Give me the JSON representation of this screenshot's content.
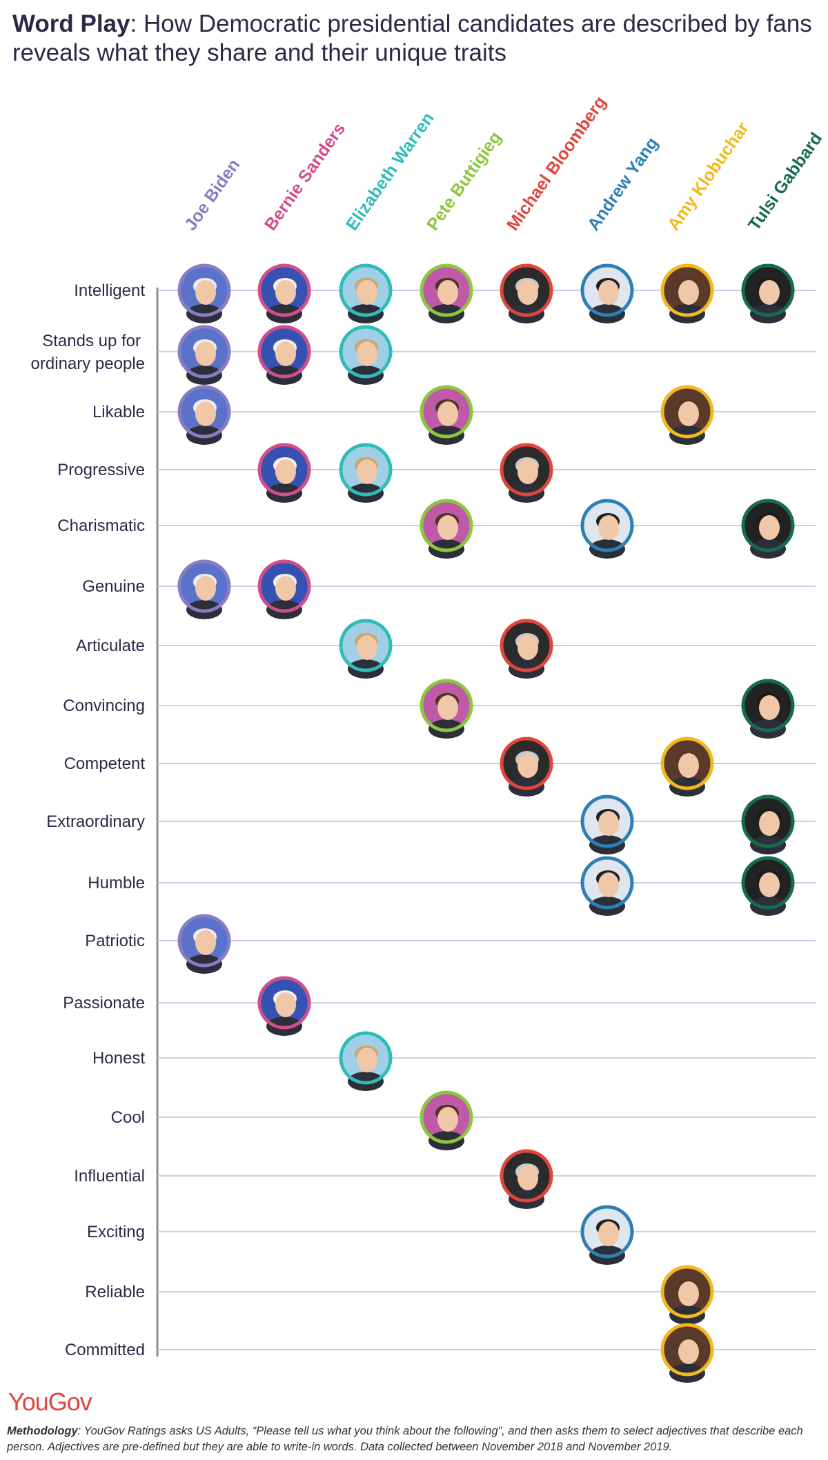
{
  "title": {
    "bold": "Word Play",
    "rest": ": How Democratic presidential candidates are described by fans reveals what they share and their unique traits"
  },
  "logo": "YouGov",
  "methodology": {
    "label": "Methodology",
    "text": ": YouGov Ratings asks US Adults, “Please tell us what you think about the following”, and then asks them to select adjectives that describe each person. Adjectives are pre-defined but they are able to write-in words. Data collected between November 2018 and November 2019."
  },
  "colors": {
    "line": "#b9bdd6",
    "axis": "#8c8c8c",
    "text": "#2b2945",
    "skin": "#f0c8a8"
  },
  "chart_data": {
    "type": "dot-matrix",
    "candidates": [
      {
        "name": "Joe Biden",
        "color": "#8a7cc2",
        "bg": "#5a72c9",
        "hair": "#eeeeee"
      },
      {
        "name": "Bernie Sanders",
        "color": "#d14d8b",
        "bg": "#3552b2",
        "hair": "#f2f2f2"
      },
      {
        "name": "Elizabeth Warren",
        "color": "#2fbcb8",
        "bg": "#9fd0e8",
        "hair": "#cfa36c"
      },
      {
        "name": "Pete Buttigieg",
        "color": "#8cc63f",
        "bg": "#c05aa8",
        "hair": "#4b3424"
      },
      {
        "name": "Michael Bloomberg",
        "color": "#e0463c",
        "bg": "#2b2b2b",
        "hair": "#c9c9c9"
      },
      {
        "name": "Andrew Yang",
        "color": "#2f7fb5",
        "bg": "#dfe6ef",
        "hair": "#1f1f1f"
      },
      {
        "name": "Amy Klobuchar",
        "color": "#f2b81c",
        "bg": "#5a3a2a",
        "hair": "#5a3522"
      },
      {
        "name": "Tulsi Gabbard",
        "color": "#176b4f",
        "bg": "#222222",
        "hair": "#1a1a1a"
      }
    ],
    "traits": [
      {
        "label": "Intelligent",
        "candidates": [
          "Joe Biden",
          "Bernie Sanders",
          "Elizabeth Warren",
          "Pete Buttigieg",
          "Michael Bloomberg",
          "Andrew Yang",
          "Amy Klobuchar",
          "Tulsi Gabbard"
        ]
      },
      {
        "label": "Stands up for ordinary people",
        "candidates": [
          "Joe Biden",
          "Bernie Sanders",
          "Elizabeth Warren"
        ]
      },
      {
        "label": "Likable",
        "candidates": [
          "Joe Biden",
          "Pete Buttigieg",
          "Amy Klobuchar"
        ]
      },
      {
        "label": "Progressive",
        "candidates": [
          "Bernie Sanders",
          "Elizabeth Warren",
          "Michael Bloomberg"
        ]
      },
      {
        "label": "Charismatic",
        "candidates": [
          "Pete Buttigieg",
          "Andrew Yang",
          "Tulsi Gabbard"
        ]
      },
      {
        "label": "Genuine",
        "candidates": [
          "Joe Biden",
          "Bernie Sanders"
        ]
      },
      {
        "label": "Articulate",
        "candidates": [
          "Elizabeth Warren",
          "Michael Bloomberg"
        ]
      },
      {
        "label": "Convincing",
        "candidates": [
          "Pete Buttigieg",
          "Tulsi Gabbard"
        ]
      },
      {
        "label": "Competent",
        "candidates": [
          "Michael Bloomberg",
          "Amy Klobuchar"
        ]
      },
      {
        "label": "Extraordinary",
        "candidates": [
          "Andrew Yang",
          "Tulsi Gabbard"
        ]
      },
      {
        "label": "Humble",
        "candidates": [
          "Andrew Yang",
          "Tulsi Gabbard"
        ]
      },
      {
        "label": "Patriotic",
        "candidates": [
          "Joe Biden"
        ]
      },
      {
        "label": "Passionate",
        "candidates": [
          "Bernie Sanders"
        ]
      },
      {
        "label": "Honest",
        "candidates": [
          "Elizabeth Warren"
        ]
      },
      {
        "label": "Cool",
        "candidates": [
          "Pete Buttigieg"
        ]
      },
      {
        "label": "Influential",
        "candidates": [
          "Michael Bloomberg"
        ]
      },
      {
        "label": "Exciting",
        "candidates": [
          "Andrew Yang"
        ]
      },
      {
        "label": "Reliable",
        "candidates": [
          "Amy Klobuchar"
        ]
      },
      {
        "label": "Committed",
        "candidates": [
          "Amy Klobuchar"
        ]
      }
    ]
  }
}
